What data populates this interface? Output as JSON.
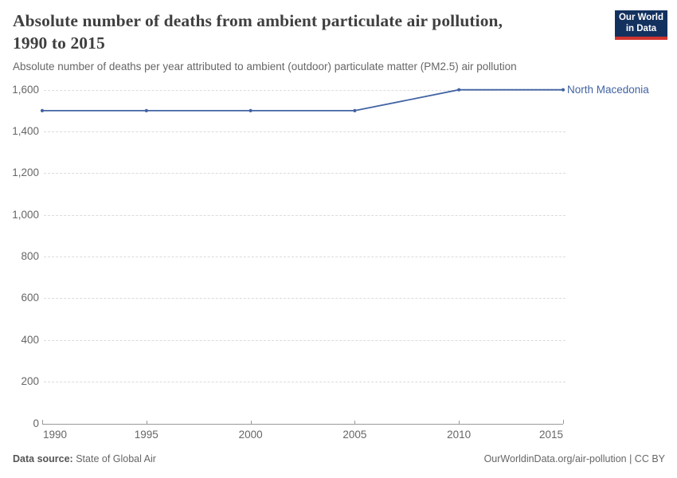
{
  "header": {
    "title_line1": "Absolute number of deaths from ambient particulate air pollution,",
    "title_line2": "1990 to 2015",
    "subtitle": "Absolute number of deaths per year attributed to ambient (outdoor) particulate matter (PM2.5) air pollution",
    "logo": {
      "line1": "Our World",
      "line2": "in Data"
    }
  },
  "chart_data": {
    "type": "line",
    "title": "Absolute number of deaths from ambient particulate air pollution, 1990 to 2015",
    "x": [
      1990,
      1995,
      2000,
      2005,
      2010,
      2015
    ],
    "series": [
      {
        "name": "North Macedonia",
        "values": [
          1500,
          1500,
          1500,
          1500,
          1600,
          1600
        ],
        "color": "#4263a3"
      }
    ],
    "xticks": [
      1990,
      1995,
      2000,
      2005,
      2010,
      2015
    ],
    "yticks": [
      0,
      200,
      400,
      600,
      800,
      1000,
      1200,
      1400,
      1600
    ],
    "xlim": [
      1990,
      2015
    ],
    "ylim": [
      0,
      1600
    ],
    "grid": "horizontal-dashed",
    "legend_position": "end-of-line-label",
    "colors": {
      "line": "#4263a3",
      "entity_label": "#4263a3",
      "gridline": "#dcdcdc",
      "axis": "#999999",
      "tick_text": "#666666"
    }
  },
  "footer": {
    "source_label": "Data source:",
    "source_value": " State of Global Air",
    "license": "OurWorldinData.org/air-pollution | CC BY"
  }
}
